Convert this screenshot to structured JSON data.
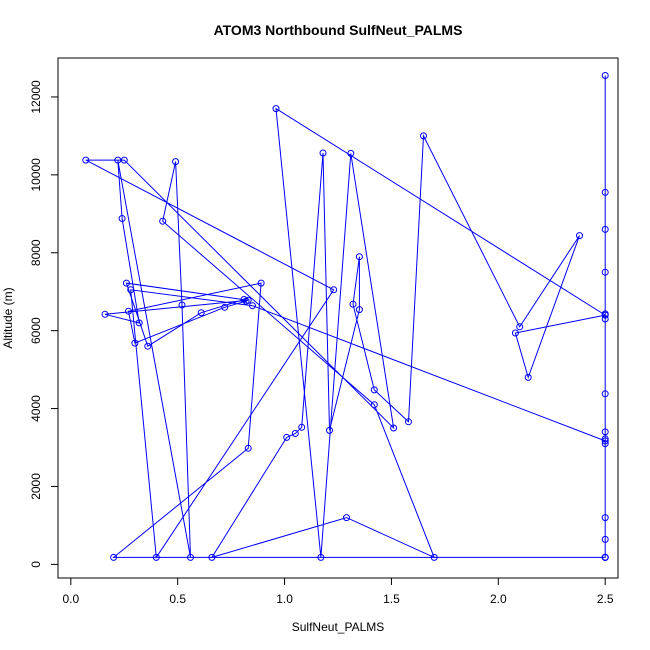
{
  "chart_data": {
    "type": "line",
    "title": "ATOM3 Northbound SulfNeut_PALMS",
    "xlabel": "SulfNeut_PALMS",
    "ylabel": "Altitude (m)",
    "xlim": [
      -0.06,
      2.56
    ],
    "ylim": [
      -350,
      13000
    ],
    "xticks": [
      0.0,
      0.5,
      1.0,
      1.5,
      2.0,
      2.5
    ],
    "xtick_labels": [
      "0.0",
      "0.5",
      "1.0",
      "1.5",
      "2.0",
      "2.5"
    ],
    "yticks": [
      0,
      2000,
      4000,
      6000,
      8000,
      10000,
      12000
    ],
    "ytick_labels": [
      "0",
      "2000",
      "4000",
      "6000",
      "8000",
      "10000",
      "12000"
    ],
    "grid": false,
    "series": [
      {
        "color": "#0000ff",
        "x": [
          2.5,
          2.5,
          2.5,
          2.5,
          2.5,
          2.5,
          2.5,
          2.5,
          2.5,
          2.5,
          2.5,
          2.5,
          2.5,
          2.5,
          2.5,
          0.2,
          0.83,
          0.89,
          0.27,
          0.3,
          0.72,
          0.82,
          0.81,
          0.61,
          0.36,
          0.26,
          0.83,
          0.16,
          0.32,
          0.24,
          0.22,
          0.56,
          0.52,
          0.49,
          0.43,
          1.42,
          1.7,
          1.29,
          0.66,
          1.01,
          1.05,
          1.08,
          1.18,
          1.21,
          1.35,
          1.35,
          1.32,
          1.42,
          1.58,
          1.65,
          2.1,
          2.38,
          2.14,
          2.08,
          2.5,
          0.96,
          1.17,
          1.31,
          1.51,
          0.25,
          0.07,
          1.23,
          0.4,
          0.28,
          0.85,
          2.5,
          2.5
        ],
        "y": [
          180,
          3400,
          6300,
          8600,
          12550,
          180,
          640,
          3100,
          4380,
          6430,
          7500,
          9550,
          3220,
          1200,
          180,
          180,
          2980,
          7220,
          6500,
          5680,
          6600,
          6760,
          6800,
          6460,
          5600,
          7220,
          6780,
          6420,
          6200,
          8880,
          10380,
          180,
          6660,
          10340,
          8810,
          4100,
          180,
          1200,
          180,
          3260,
          3360,
          3520,
          10560,
          3440,
          6540,
          7900,
          6680,
          4480,
          3660,
          11000,
          6100,
          8440,
          4800,
          5940,
          6400,
          11700,
          180,
          10550,
          3500,
          10380,
          10380,
          7050,
          180,
          7050,
          6640,
          3170,
          180
        ]
      }
    ]
  }
}
